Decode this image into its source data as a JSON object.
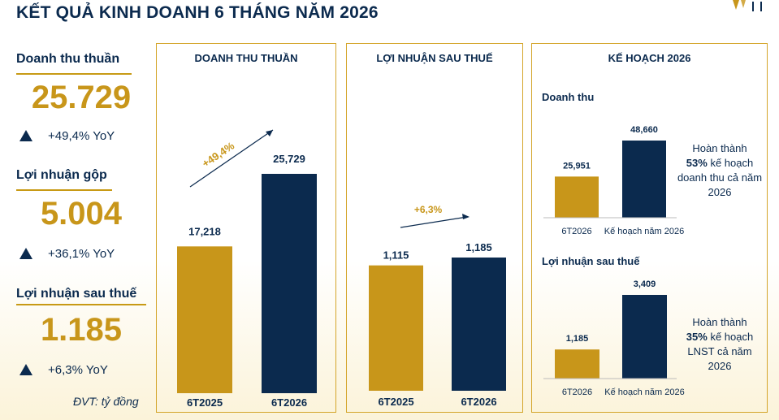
{
  "title": "KẾT QUẢ KINH DOANH 6 THÁNG NĂM 2026",
  "colors": {
    "gold": "#c8961a",
    "navy": "#0b2a4e",
    "border": "#d4a52a"
  },
  "kpis": [
    {
      "label": "Doanh thu thuần",
      "value": "25.729",
      "yoy": "+49,4% YoY"
    },
    {
      "label": "Lợi nhuận gộp",
      "value": "5.004",
      "yoy": "+36,1% YoY"
    },
    {
      "label": "Lợi nhuận sau thuế",
      "value": "1.185",
      "yoy": "+6,3% YoY"
    }
  ],
  "unit_note": "ĐVT: tỷ đồng",
  "plan": {
    "title": "KẾ HOẠCH 2026",
    "revenue_title": "Doanh thu",
    "profit_title": "Lợi nhuận sau thuế",
    "revenue_note": {
      "pre": "Hoàn thành",
      "pct": "53%",
      "post": "kế hoạch doanh thu cả năm 2026"
    },
    "profit_note": {
      "pre": "Hoàn thành",
      "pct": "35%",
      "post": "kế hoạch LNST cả năm 2026"
    }
  },
  "chart_data": [
    {
      "type": "bar",
      "title": "DOANH THU THUẦN",
      "categories": [
        "6T2025",
        "6T2026"
      ],
      "values": [
        17218,
        25729
      ],
      "value_labels": [
        "17,218",
        "25,729"
      ],
      "annotation": "+49,4%",
      "ylim": [
        0,
        30000
      ]
    },
    {
      "type": "bar",
      "title": "LỢI NHUẬN SAU THUẾ",
      "categories": [
        "6T2025",
        "6T2026"
      ],
      "values": [
        1115,
        1185
      ],
      "value_labels": [
        "1,115",
        "1,185"
      ],
      "annotation": "+6,3%",
      "ylim": [
        0,
        1800
      ]
    },
    {
      "type": "bar",
      "title": "Doanh thu",
      "categories": [
        "6T2026",
        "Kế hoạch năm 2026"
      ],
      "values": [
        25951,
        48660
      ],
      "value_labels": [
        "25,951",
        "48,660"
      ],
      "ylim": [
        0,
        55000
      ]
    },
    {
      "type": "bar",
      "title": "Lợi nhuận sau thuế",
      "categories": [
        "6T2026",
        "Kế hoạch năm 2026"
      ],
      "values": [
        1185,
        3409
      ],
      "value_labels": [
        "1,185",
        "3,409"
      ],
      "ylim": [
        0,
        3900
      ]
    }
  ]
}
